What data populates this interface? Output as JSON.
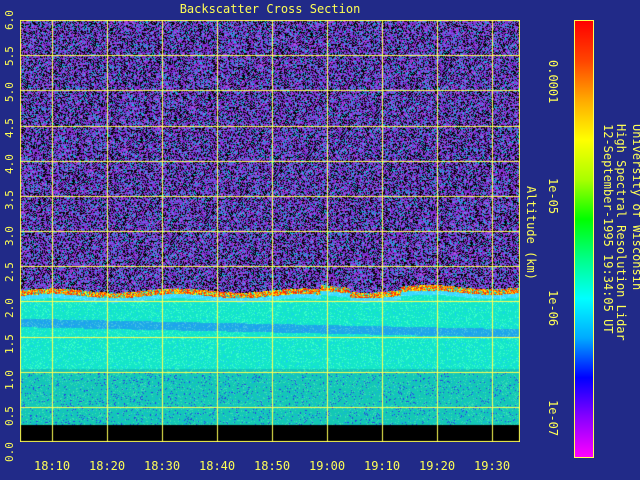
{
  "window": {
    "title": "Backscatter Cross Section",
    "y_axis_label": "Altitude (km)",
    "institution_lines": [
      "University of Wisconsin",
      "High Spectral Resolution Lidar",
      "12-September-1995 19:34:05 UT"
    ]
  },
  "axes": {
    "y_ticks": [
      "0.0",
      "0.5",
      "1.0",
      "1.5",
      "2.0",
      "2.5",
      "3.0",
      "3.5",
      "4.0",
      "4.5",
      "5.0",
      "5.5",
      "6.0"
    ],
    "x_ticks": [
      "18:10",
      "18:20",
      "18:30",
      "18:40",
      "18:50",
      "19:00",
      "19:10",
      "19:20",
      "19:30"
    ]
  },
  "colorbar": {
    "labels": [
      "0.0001",
      "1e-05",
      "1e-06",
      "1e-07"
    ],
    "scale": "log",
    "colors": [
      "#ff00ff",
      "#8800ff",
      "#0000ff",
      "#00aaff",
      "#00ffff",
      "#00ff88",
      "#00ff00",
      "#aaff00",
      "#ffff00",
      "#ffaa00",
      "#ff4400",
      "#ff0000"
    ]
  },
  "chart_data": {
    "type": "heatmap",
    "title": "Backscatter Cross Section",
    "xlabel": "",
    "ylabel": "Altitude (km)",
    "x_ticks": [
      "18:10",
      "18:20",
      "18:30",
      "18:40",
      "18:50",
      "19:00",
      "19:10",
      "19:20",
      "19:30"
    ],
    "y_ticks": [
      0,
      0.5,
      1,
      1.5,
      2,
      2.5,
      3,
      3.5,
      4,
      4.5,
      5,
      5.5,
      6
    ],
    "ylim": [
      0,
      6
    ],
    "colorscale": "log",
    "colorbar_ticks": [
      "0.0001",
      "1e-05",
      "1e-06",
      "1e-07"
    ],
    "cloud_layer_base_km": 2.1,
    "grid": true
  }
}
